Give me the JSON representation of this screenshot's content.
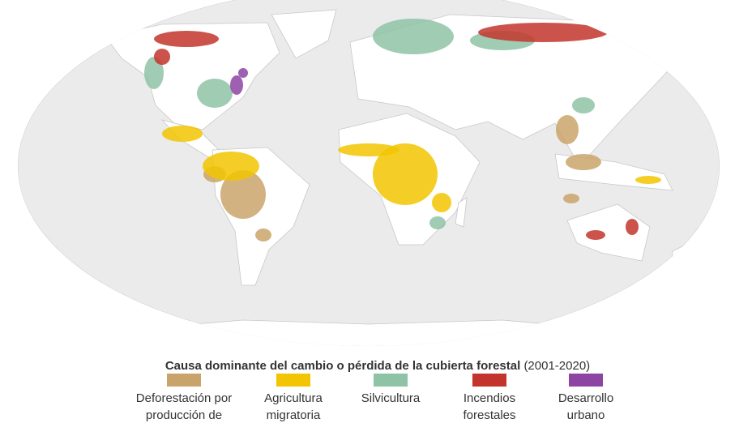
{
  "legend": {
    "title": "Causa dominante del cambio o pérdida de la cubierta forestal",
    "period": "(2001-2020)",
    "items": [
      {
        "lines": [
          "Deforestación por",
          "producción de"
        ],
        "color": "#c9a46a"
      },
      {
        "lines": [
          "Agricultura",
          "migratoria"
        ],
        "color": "#f2c500"
      },
      {
        "lines": [
          "Silvicultura"
        ],
        "color": "#8ec3a6"
      },
      {
        "lines": [
          "Incendios",
          "forestales"
        ],
        "color": "#c3352c"
      },
      {
        "lines": [
          "Desarrollo",
          "urbano"
        ],
        "color": "#8e44a3"
      }
    ]
  }
}
